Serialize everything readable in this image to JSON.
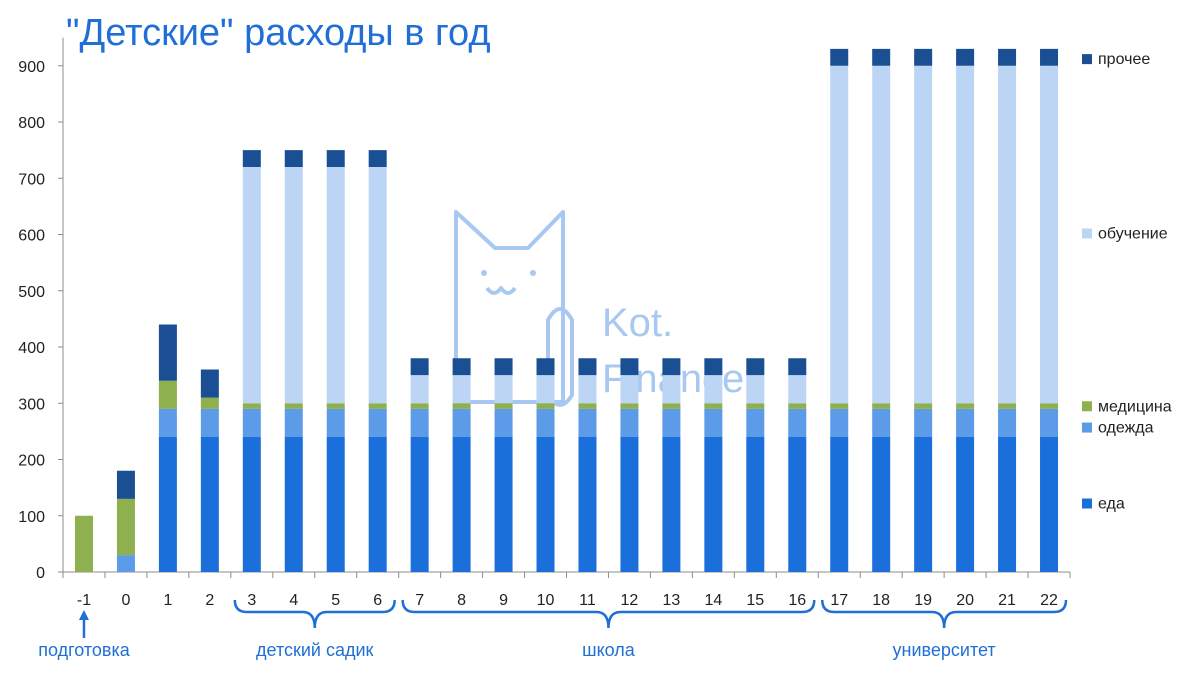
{
  "chart_data": {
    "type": "bar",
    "stacked": true,
    "title": "\"Детские\" расходы в год",
    "categories": [
      "-1",
      "0",
      "1",
      "2",
      "3",
      "4",
      "5",
      "6",
      "7",
      "8",
      "9",
      "10",
      "11",
      "12",
      "13",
      "14",
      "15",
      "16",
      "17",
      "18",
      "19",
      "20",
      "21",
      "22"
    ],
    "series": [
      {
        "name": "еда",
        "color": "#1a6fdb",
        "values": [
          0,
          0,
          240,
          240,
          240,
          240,
          240,
          240,
          240,
          240,
          240,
          240,
          240,
          240,
          240,
          240,
          240,
          240,
          240,
          240,
          240,
          240,
          240,
          240
        ]
      },
      {
        "name": "одежда",
        "color": "#5b9be8",
        "values": [
          0,
          30,
          50,
          50,
          50,
          50,
          50,
          50,
          50,
          50,
          50,
          50,
          50,
          50,
          50,
          50,
          50,
          50,
          50,
          50,
          50,
          50,
          50,
          50
        ]
      },
      {
        "name": "медицина",
        "color": "#8fb04f",
        "values": [
          100,
          100,
          50,
          20,
          10,
          10,
          10,
          10,
          10,
          10,
          10,
          10,
          10,
          10,
          10,
          10,
          10,
          10,
          10,
          10,
          10,
          10,
          10,
          10
        ]
      },
      {
        "name": "обучение",
        "color": "#bcd5f5",
        "values": [
          0,
          0,
          0,
          0,
          420,
          420,
          420,
          420,
          50,
          50,
          50,
          50,
          50,
          50,
          50,
          50,
          50,
          50,
          600,
          600,
          600,
          600,
          600,
          600
        ]
      },
      {
        "name": "прочее",
        "color": "#1b4f93",
        "values": [
          0,
          50,
          100,
          50,
          30,
          30,
          30,
          30,
          30,
          30,
          30,
          30,
          30,
          30,
          30,
          30,
          30,
          30,
          30,
          30,
          30,
          30,
          30,
          30
        ]
      }
    ],
    "ylim": [
      0,
      950
    ],
    "yticks": [
      0,
      100,
      200,
      300,
      400,
      500,
      600,
      700,
      800,
      900
    ],
    "grid": false,
    "legend_position": "right",
    "groups": [
      {
        "label": "подготовка",
        "from": "-1",
        "to": "-1",
        "marker": "arrow"
      },
      {
        "label": "детский садик",
        "from": "3",
        "to": "6",
        "marker": "brace"
      },
      {
        "label": "школа",
        "from": "7",
        "to": "16",
        "marker": "brace"
      },
      {
        "label": "университет",
        "from": "17",
        "to": "22",
        "marker": "brace"
      }
    ]
  },
  "watermark": {
    "line1": "Kot.",
    "line2": "Finance",
    "icon": "cat-icon"
  }
}
